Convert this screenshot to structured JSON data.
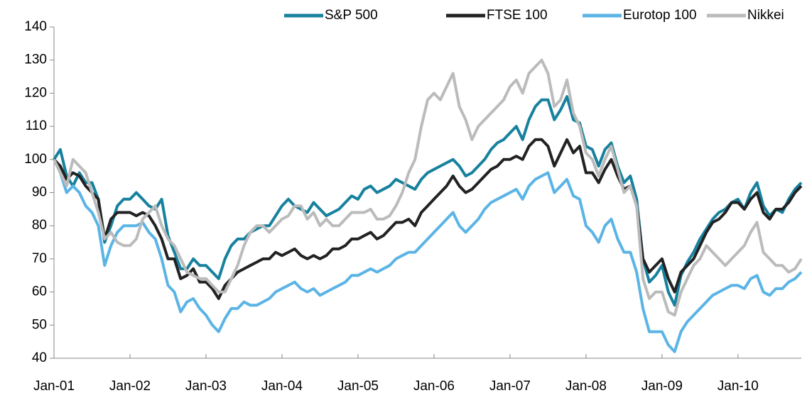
{
  "chart_data": {
    "type": "line",
    "categories": [
      "Jan-01",
      null,
      null,
      null,
      null,
      null,
      null,
      null,
      null,
      null,
      null,
      null,
      "Jan-02",
      null,
      null,
      null,
      null,
      null,
      null,
      null,
      null,
      null,
      null,
      null,
      "Jan-03",
      null,
      null,
      null,
      null,
      null,
      null,
      null,
      null,
      null,
      null,
      null,
      "Jan-04",
      null,
      null,
      null,
      null,
      null,
      null,
      null,
      null,
      null,
      null,
      null,
      "Jan-05",
      null,
      null,
      null,
      null,
      null,
      null,
      null,
      null,
      null,
      null,
      null,
      "Jan-06",
      null,
      null,
      null,
      null,
      null,
      null,
      null,
      null,
      null,
      null,
      null,
      "Jan-07",
      null,
      null,
      null,
      null,
      null,
      null,
      null,
      null,
      null,
      null,
      null,
      "Jan-08",
      null,
      null,
      null,
      null,
      null,
      null,
      null,
      null,
      null,
      null,
      null,
      "Jan-09",
      null,
      null,
      null,
      null,
      null,
      null,
      null,
      null,
      null,
      null,
      null,
      "Jan-10",
      null,
      null,
      null,
      null,
      null,
      null,
      null,
      null,
      null,
      null
    ],
    "series": [
      {
        "name": "S&P 500",
        "color": "#17819e",
        "values": [
          100,
          103,
          95,
          92,
          96,
          93,
          93,
          88,
          75,
          80,
          86,
          88,
          88,
          90,
          88,
          86,
          85,
          88,
          77,
          72,
          67,
          67,
          70,
          68,
          68,
          66,
          64,
          70,
          74,
          76,
          76,
          78,
          79,
          80,
          80,
          83,
          86,
          88,
          86,
          85,
          84,
          87,
          85,
          83,
          84,
          85,
          87,
          89,
          88,
          91,
          92,
          90,
          91,
          92,
          94,
          93,
          92,
          91,
          94,
          96,
          97,
          98,
          99,
          100,
          98,
          95,
          96,
          98,
          100,
          103,
          105,
          106,
          108,
          110,
          106,
          112,
          116,
          118,
          118,
          112,
          115,
          119,
          112,
          111,
          104,
          103,
          98,
          103,
          105,
          98,
          93,
          95,
          88,
          70,
          63,
          65,
          68,
          60,
          56,
          65,
          69,
          72,
          76,
          79,
          82,
          84,
          85,
          87,
          88,
          85,
          90,
          93,
          86,
          83,
          85,
          84,
          88,
          91,
          93
        ]
      },
      {
        "name": "FTSE 100",
        "color": "#222222",
        "values": [
          100,
          98,
          94,
          96,
          95,
          92,
          90,
          88,
          76,
          82,
          84,
          84,
          84,
          83,
          84,
          83,
          80,
          76,
          70,
          70,
          64,
          65,
          67,
          63,
          63,
          61,
          58,
          62,
          64,
          66,
          67,
          68,
          69,
          70,
          70,
          72,
          71,
          72,
          73,
          71,
          70,
          71,
          70,
          71,
          73,
          73,
          74,
          76,
          76,
          77,
          78,
          76,
          77,
          79,
          81,
          81,
          82,
          80,
          84,
          86,
          88,
          90,
          92,
          95,
          92,
          90,
          91,
          93,
          95,
          97,
          98,
          100,
          100,
          101,
          100,
          104,
          106,
          106,
          104,
          98,
          102,
          106,
          102,
          104,
          96,
          96,
          93,
          97,
          100,
          95,
          91,
          92,
          86,
          70,
          66,
          68,
          70,
          64,
          60,
          66,
          68,
          70,
          74,
          78,
          81,
          82,
          84,
          87,
          87,
          85,
          88,
          90,
          84,
          82,
          85,
          85,
          87,
          90,
          92
        ]
      },
      {
        "name": "Eurotop 100",
        "color": "#5bb4e5",
        "values": [
          100,
          96,
          90,
          92,
          90,
          86,
          84,
          80,
          68,
          74,
          78,
          80,
          80,
          80,
          81,
          78,
          76,
          70,
          62,
          60,
          54,
          57,
          58,
          55,
          53,
          50,
          48,
          52,
          55,
          55,
          57,
          56,
          56,
          57,
          58,
          60,
          61,
          62,
          63,
          61,
          60,
          61,
          59,
          60,
          61,
          62,
          63,
          65,
          65,
          66,
          67,
          66,
          67,
          68,
          70,
          71,
          72,
          72,
          74,
          76,
          78,
          80,
          82,
          84,
          80,
          78,
          80,
          82,
          85,
          87,
          88,
          89,
          90,
          91,
          88,
          92,
          94,
          95,
          96,
          90,
          92,
          94,
          89,
          88,
          80,
          78,
          75,
          80,
          82,
          76,
          72,
          72,
          66,
          55,
          48,
          48,
          48,
          44,
          42,
          48,
          51,
          53,
          55,
          57,
          59,
          60,
          61,
          62,
          62,
          61,
          64,
          65,
          60,
          59,
          61,
          61,
          63,
          64,
          66
        ]
      },
      {
        "name": "Nikkei",
        "color": "#bbbbbb",
        "values": [
          100,
          96,
          92,
          100,
          98,
          96,
          90,
          84,
          76,
          78,
          75,
          74,
          74,
          76,
          82,
          84,
          86,
          80,
          76,
          74,
          70,
          66,
          65,
          64,
          64,
          62,
          60,
          60,
          64,
          68,
          74,
          78,
          80,
          80,
          78,
          80,
          82,
          83,
          86,
          86,
          82,
          84,
          80,
          82,
          80,
          80,
          82,
          84,
          84,
          84,
          85,
          82,
          82,
          83,
          86,
          90,
          96,
          100,
          110,
          118,
          120,
          118,
          122,
          126,
          116,
          112,
          106,
          110,
          112,
          114,
          116,
          118,
          122,
          124,
          120,
          126,
          128,
          130,
          126,
          116,
          118,
          124,
          114,
          110,
          102,
          100,
          95,
          100,
          104,
          97,
          90,
          92,
          86,
          64,
          58,
          60,
          60,
          54,
          53,
          60,
          64,
          68,
          70,
          74,
          72,
          70,
          68,
          70,
          72,
          74,
          78,
          81,
          72,
          70,
          68,
          68,
          66,
          67,
          70
        ]
      }
    ],
    "ylim": [
      40,
      140
    ],
    "yticks": [
      40,
      50,
      60,
      70,
      80,
      90,
      100,
      110,
      120,
      130,
      140
    ],
    "grid": false
  }
}
